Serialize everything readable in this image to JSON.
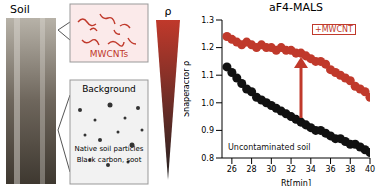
{
  "panel": {
    "soil_label": "Soil",
    "mwcnt_label": "MWCNTs",
    "background_label": "Background",
    "background_items": [
      "Native soil particles",
      "Black carbon, soot"
    ],
    "triangle_label": "ρ"
  },
  "chart_data": {
    "type": "scatter",
    "title": "aF4-MALS",
    "x_label": "Rt[min]",
    "y_label": "Shapefactor ρ",
    "xlim": [
      25,
      40
    ],
    "xticks": [
      26,
      28,
      30,
      32,
      34,
      36,
      38,
      40
    ],
    "ylim": [
      0.8,
      1.3
    ],
    "yticks": [
      {
        "value": 0.8,
        "label": "0.8"
      },
      {
        "value": 0.9,
        "label": "0.9"
      },
      {
        "value": 1,
        "label": "1.0"
      },
      {
        "value": 1.1,
        "label": "1.1"
      },
      {
        "value": 1.2,
        "label": "1.2"
      },
      {
        "value": 1.3,
        "label": "1.3"
      }
    ],
    "x": [
      25.5,
      26,
      26.5,
      27,
      27.5,
      28,
      28.5,
      29,
      29.5,
      30,
      30.5,
      31,
      31.5,
      32,
      32.5,
      33,
      33.5,
      34,
      34.5,
      35,
      35.5,
      36,
      36.5,
      37,
      37.5,
      38,
      38.5,
      39,
      39.5,
      40
    ],
    "series": [
      {
        "name": "+MWCNT",
        "color": "#c0392b",
        "marker": "circle",
        "values": [
          1.24,
          1.23,
          1.22,
          1.21,
          1.22,
          1.21,
          1.2,
          1.21,
          1.2,
          1.2,
          1.19,
          1.2,
          1.19,
          1.19,
          1.18,
          1.18,
          1.17,
          1.16,
          1.15,
          1.15,
          1.14,
          1.12,
          1.11,
          1.1,
          1.09,
          1.08,
          1.06,
          1.05,
          1.04,
          1.02
        ]
      },
      {
        "name": "Uncontaminated soil",
        "color": "#111111",
        "marker": "circle",
        "values": [
          1.13,
          1.11,
          1.09,
          1.07,
          1.05,
          1.04,
          1.02,
          1.01,
          1.0,
          0.99,
          0.98,
          0.97,
          0.96,
          0.95,
          0.94,
          0.93,
          0.92,
          0.91,
          0.9,
          0.9,
          0.89,
          0.88,
          0.87,
          0.87,
          0.86,
          0.85,
          0.85,
          0.84,
          0.83,
          0.82
        ]
      }
    ],
    "annotations": [
      {
        "text": "+MWCNT",
        "color": "#c0392b"
      },
      {
        "text": "Uncontaminated soil",
        "color": "#111111"
      }
    ]
  }
}
